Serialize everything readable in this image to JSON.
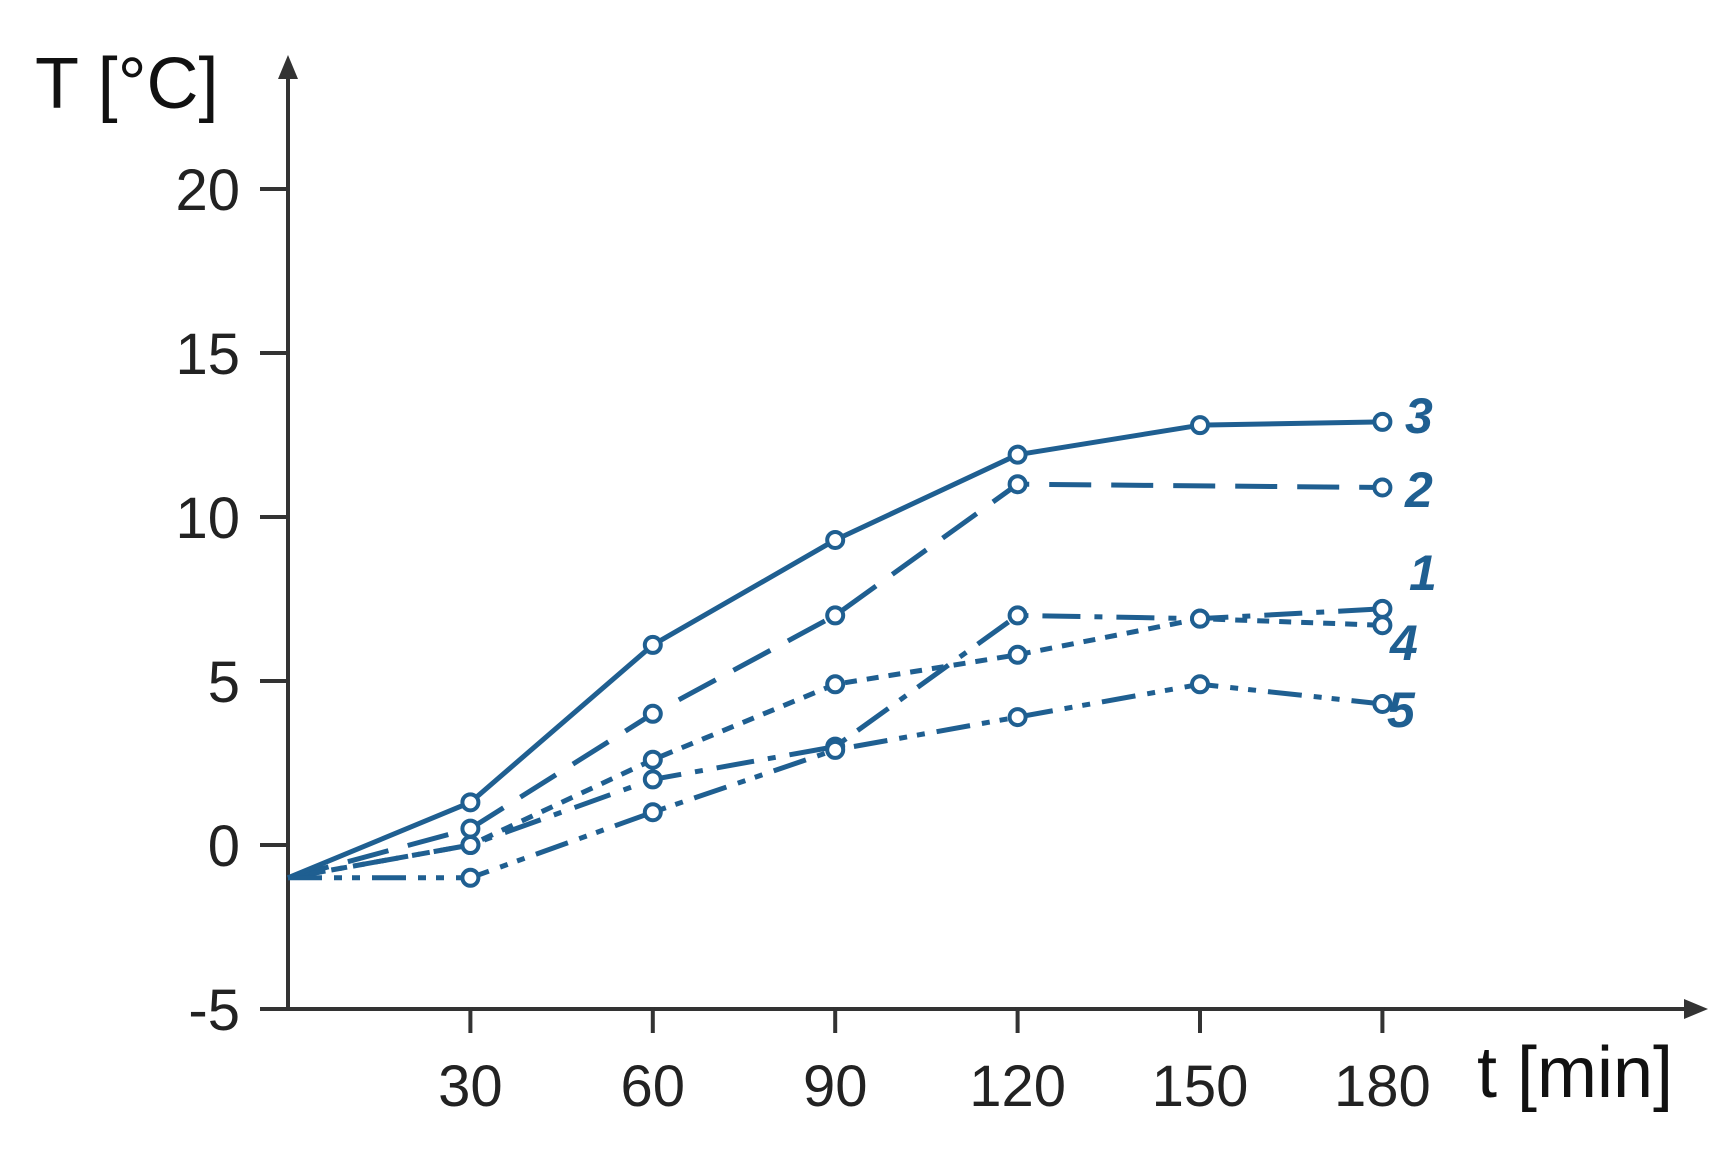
{
  "chart_data": {
    "type": "line",
    "title": "",
    "xlabel": "t [min]",
    "ylabel": "T [°C]",
    "xlim": [
      0,
      205
    ],
    "ylim": [
      -5,
      23
    ],
    "x_ticks": [
      30,
      60,
      90,
      120,
      150,
      180
    ],
    "y_ticks": [
      -5,
      0,
      5,
      10,
      15,
      20
    ],
    "x_tick_labels": [
      "30",
      "60",
      "90",
      "120",
      "150",
      "180"
    ],
    "y_tick_labels": [
      "-5",
      "0",
      "5",
      "10",
      "15",
      "20"
    ],
    "grid": false,
    "line_color": "#1f5f91",
    "series": [
      {
        "name": "1",
        "dash": "dash-dot",
        "points": [
          [
            0,
            -1
          ],
          [
            30,
            0
          ],
          [
            60,
            2
          ],
          [
            90,
            3
          ],
          [
            120,
            7
          ],
          [
            150,
            6.9
          ],
          [
            180,
            7.2
          ]
        ]
      },
      {
        "name": "2",
        "dash": "dashed",
        "points": [
          [
            0,
            -1
          ],
          [
            30,
            0.5
          ],
          [
            60,
            4
          ],
          [
            90,
            7
          ],
          [
            120,
            11
          ],
          [
            180,
            10.9
          ]
        ]
      },
      {
        "name": "3",
        "dash": "solid",
        "points": [
          [
            0,
            -1
          ],
          [
            30,
            1.3
          ],
          [
            60,
            6.1
          ],
          [
            90,
            9.3
          ],
          [
            120,
            11.9
          ],
          [
            150,
            12.8
          ],
          [
            180,
            12.9
          ]
        ]
      },
      {
        "name": "4",
        "dash": "dotted",
        "points": [
          [
            0,
            -1
          ],
          [
            30,
            0
          ],
          [
            60,
            2.6
          ],
          [
            90,
            4.9
          ],
          [
            120,
            5.8
          ],
          [
            150,
            6.9
          ],
          [
            180,
            6.7
          ]
        ]
      },
      {
        "name": "5",
        "dash": "dash-dot-dot",
        "points": [
          [
            0,
            -1
          ],
          [
            30,
            -1
          ],
          [
            60,
            1
          ],
          [
            90,
            2.9
          ],
          [
            120,
            3.9
          ],
          [
            150,
            4.9
          ],
          [
            180,
            4.3
          ]
        ]
      }
    ]
  }
}
